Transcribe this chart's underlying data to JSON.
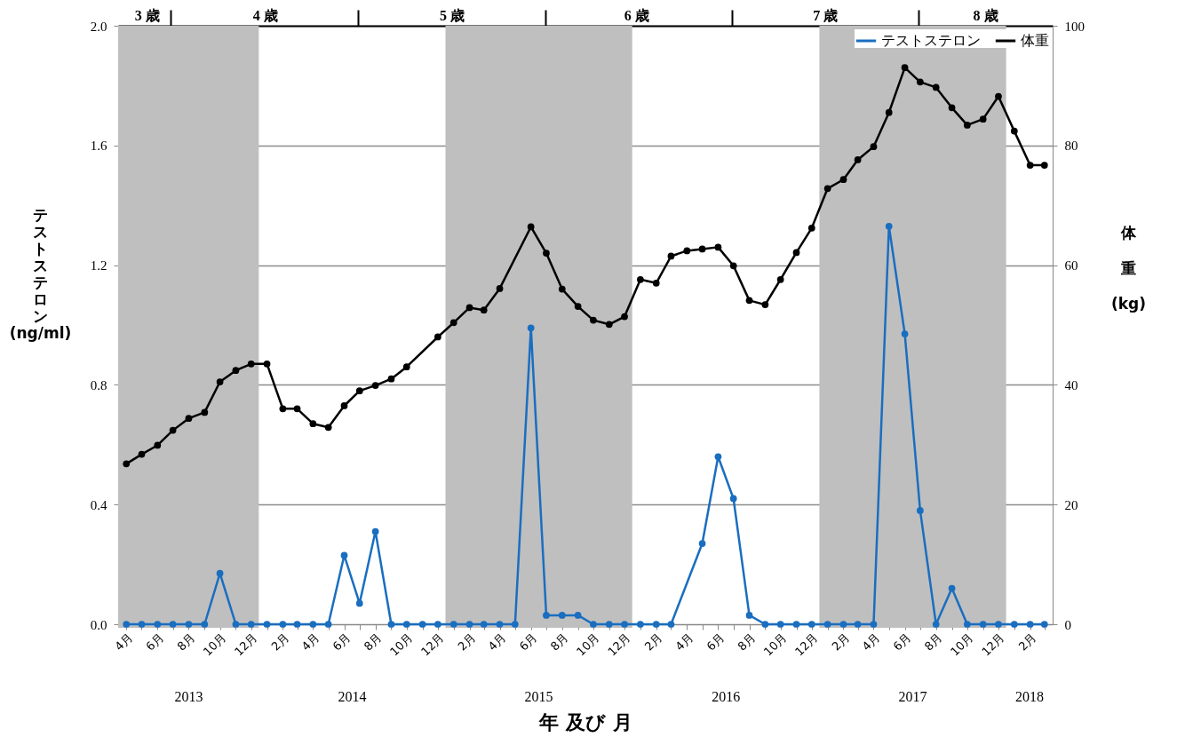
{
  "chart_data": {
    "type": "line",
    "xlabel": "年 及び 月",
    "ylabel": "テストステロン (ng/ml)",
    "y2label": "体重 (kg)",
    "x": [
      "2013-04",
      "2013-05",
      "2013-06",
      "2013-07",
      "2013-08",
      "2013-09",
      "2013-10",
      "2013-11",
      "2013-12",
      "2014-01",
      "2014-02",
      "2014-03",
      "2014-04",
      "2014-05",
      "2014-06",
      "2014-07",
      "2014-08",
      "2014-09",
      "2014-10",
      "2014-11",
      "2014-12",
      "2015-01",
      "2015-02",
      "2015-03",
      "2015-04",
      "2015-05",
      "2015-06",
      "2015-07",
      "2015-08",
      "2015-09",
      "2015-10",
      "2015-11",
      "2015-12",
      "2016-01",
      "2016-02",
      "2016-03",
      "2016-04",
      "2016-05",
      "2016-06",
      "2016-07",
      "2016-08",
      "2016-09",
      "2016-10",
      "2016-11",
      "2016-12",
      "2017-01",
      "2017-02",
      "2017-03",
      "2017-04",
      "2017-05",
      "2017-06",
      "2017-07",
      "2017-08",
      "2017-09",
      "2017-10",
      "2017-11",
      "2017-12",
      "2018-01",
      "2018-02",
      "2018-03"
    ],
    "series": [
      {
        "name": "テストステロン",
        "color": "#1a6ec0",
        "values": [
          0,
          0,
          0,
          0,
          0,
          0,
          0.17,
          0,
          0,
          0,
          0,
          0,
          0,
          0,
          0.23,
          0.07,
          0.31,
          0,
          0,
          0,
          0,
          0,
          0,
          0,
          0,
          0,
          0.99,
          0.03,
          0.03,
          0.03,
          0,
          0,
          0,
          0,
          0,
          0,
          null,
          0.27,
          0.56,
          0.42,
          0.03,
          0,
          0,
          0,
          0,
          0,
          0,
          0,
          0,
          1.33,
          0.97,
          0.38,
          0,
          0.12,
          0,
          0,
          0,
          0,
          0,
          0
        ]
      },
      {
        "name": "体重",
        "color": "#000000",
        "axis": "y2",
        "values": [
          26.8,
          28.4,
          29.9,
          32.4,
          34.4,
          35.4,
          40.5,
          42.4,
          43.5,
          43.5,
          36.0,
          36.0,
          33.5,
          32.9,
          36.5,
          39.0,
          39.9,
          41.0,
          43.0,
          null,
          48.0,
          50.4,
          52.9,
          52.5,
          56.1,
          null,
          66.4,
          62.0,
          56.0,
          53.1,
          50.8,
          50.1,
          51.4,
          57.6,
          57.0,
          61.5,
          62.4,
          62.7,
          63.0,
          59.9,
          54.1,
          53.4,
          57.6,
          62.1,
          66.2,
          72.8,
          74.3,
          77.6,
          79.8,
          85.5,
          93.0,
          90.6,
          89.7,
          86.3,
          83.4,
          84.4,
          88.2,
          82.4,
          76.7,
          76.7
        ]
      }
    ],
    "xlim": [
      "2013-03-16",
      "2018-03-17"
    ],
    "xticks": [
      {
        "value": "2013-04",
        "label": "4月"
      },
      {
        "value": "2013-05",
        "label": null
      },
      {
        "value": "2013-06",
        "label": "6月"
      },
      {
        "value": "2013-07",
        "label": null
      },
      {
        "value": "2013-08",
        "label": "8月"
      },
      {
        "value": "2013-09",
        "label": null
      },
      {
        "value": "2013-10",
        "label": "10月"
      },
      {
        "value": "2013-11",
        "label": null
      },
      {
        "value": "2013-12",
        "label": "12月"
      },
      {
        "value": "2014-01",
        "label": null
      },
      {
        "value": "2014-02",
        "label": "2月"
      },
      {
        "value": "2014-03",
        "label": null
      },
      {
        "value": "2014-04",
        "label": "4月"
      },
      {
        "value": "2014-05",
        "label": null
      },
      {
        "value": "2014-06",
        "label": "6月"
      },
      {
        "value": "2014-07",
        "label": null
      },
      {
        "value": "2014-08",
        "label": "8月"
      },
      {
        "value": "2014-09",
        "label": null
      },
      {
        "value": "2014-10",
        "label": "10月"
      },
      {
        "value": "2014-11",
        "label": null
      },
      {
        "value": "2014-12",
        "label": "12月"
      },
      {
        "value": "2015-01",
        "label": null
      },
      {
        "value": "2015-02",
        "label": "2月"
      },
      {
        "value": "2015-03",
        "label": null
      },
      {
        "value": "2015-04",
        "label": "4月"
      },
      {
        "value": "2015-05",
        "label": null
      },
      {
        "value": "2015-06",
        "label": "6月"
      },
      {
        "value": "2015-07",
        "label": null
      },
      {
        "value": "2015-08",
        "label": "8月"
      },
      {
        "value": "2015-09",
        "label": null
      },
      {
        "value": "2015-10",
        "label": "10月"
      },
      {
        "value": "2015-11",
        "label": null
      },
      {
        "value": "2015-12",
        "label": "12月"
      },
      {
        "value": "2016-01",
        "label": null
      },
      {
        "value": "2016-02",
        "label": "2月"
      },
      {
        "value": "2016-03",
        "label": null
      },
      {
        "value": "2016-04",
        "label": "4月"
      },
      {
        "value": "2016-05",
        "label": null
      },
      {
        "value": "2016-06",
        "label": "6月"
      },
      {
        "value": "2016-07",
        "label": null
      },
      {
        "value": "2016-08",
        "label": "8月"
      },
      {
        "value": "2016-09",
        "label": null
      },
      {
        "value": "2016-10",
        "label": "10月"
      },
      {
        "value": "2016-11",
        "label": null
      },
      {
        "value": "2016-12",
        "label": "12月"
      },
      {
        "value": "2017-01",
        "label": null
      },
      {
        "value": "2017-02",
        "label": "2月"
      },
      {
        "value": "2017-03",
        "label": null
      },
      {
        "value": "2017-04",
        "label": "4月"
      },
      {
        "value": "2017-05",
        "label": null
      },
      {
        "value": "2017-06",
        "label": "6月"
      },
      {
        "value": "2017-07",
        "label": null
      },
      {
        "value": "2017-08",
        "label": "8月"
      },
      {
        "value": "2017-09",
        "label": null
      },
      {
        "value": "2017-10",
        "label": "10月"
      },
      {
        "value": "2017-11",
        "label": null
      },
      {
        "value": "2017-12",
        "label": "12月"
      },
      {
        "value": "2018-01",
        "label": null
      },
      {
        "value": "2018-02",
        "label": "2月"
      },
      {
        "value": "2018-03",
        "label": null
      }
    ],
    "x2lim": [
      "2013-03-16",
      "2018-03-17"
    ],
    "x2ticks": [
      {
        "value": "2013-05-12",
        "label": "3 歳"
      },
      {
        "value": "2013-06-27",
        "label": null
      },
      {
        "value": "2013-12-29",
        "label": "4 歳"
      },
      {
        "value": "2014-06-28",
        "label": null
      },
      {
        "value": "2014-12-29",
        "label": "5 歳"
      },
      {
        "value": "2015-06-29",
        "label": null
      },
      {
        "value": "2015-12-25",
        "label": "6 歳"
      },
      {
        "value": "2016-06-28",
        "label": null
      },
      {
        "value": "2016-12-28",
        "label": "7 歳"
      },
      {
        "value": "2017-06-27",
        "label": null
      },
      {
        "value": "2017-11-06",
        "label": "8 歳"
      }
    ],
    "ylim": [
      0,
      2
    ],
    "yticks": [
      {
        "value": 0,
        "label": "0.0"
      },
      0.4,
      0.8,
      1.2,
      1.6,
      {
        "value": 2,
        "label": "2.0"
      }
    ],
    "y2lim": [
      0,
      100
    ],
    "y2ticks": [
      0,
      20,
      40,
      60,
      80,
      100
    ],
    "bands": [
      {
        "axis": "x",
        "from": "2013-03-16",
        "to": "2013-12-16",
        "color": "#bfbfbf"
      },
      {
        "axis": "x",
        "from": "2014-12-16",
        "to": "2015-12-16",
        "color": "#bfbfbf"
      },
      {
        "axis": "x",
        "from": "2016-12-16",
        "to": "2017-12-16",
        "color": "#bfbfbf"
      }
    ],
    "annotations": [
      "2013",
      "2014",
      "2015",
      "2016",
      "2017",
      "2018"
    ],
    "grid": "y",
    "legend": "top right",
    "marker": "circle",
    "line_style": "solid"
  }
}
